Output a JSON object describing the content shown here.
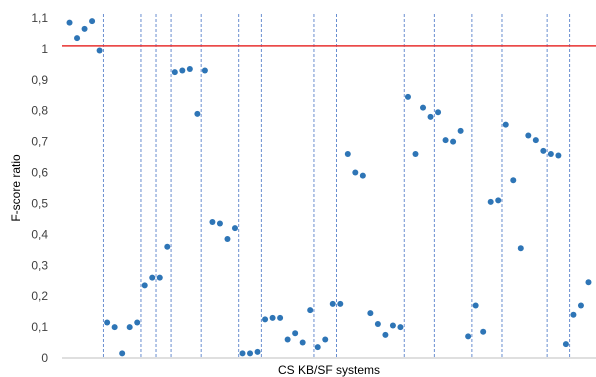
{
  "chart_data": {
    "type": "scatter",
    "title": "",
    "xlabel": "CS KB/SF systems",
    "ylabel": "F-score ratio",
    "ylim": [
      0,
      1.1
    ],
    "xlim": [
      0,
      71
    ],
    "yticks": [
      {
        "value": 0,
        "label": "0"
      },
      {
        "value": 0.1,
        "label": "0,1"
      },
      {
        "value": 0.2,
        "label": "0,2"
      },
      {
        "value": 0.3,
        "label": "0,3"
      },
      {
        "value": 0.4,
        "label": "0,4"
      },
      {
        "value": 0.5,
        "label": "0,5"
      },
      {
        "value": 0.6,
        "label": "0,6"
      },
      {
        "value": 0.7,
        "label": "0,7"
      },
      {
        "value": 0.8,
        "label": "0,8"
      },
      {
        "value": 0.9,
        "label": "0,9"
      },
      {
        "value": 1,
        "label": "1"
      },
      {
        "value": 1.1,
        "label": "1,1"
      }
    ],
    "reference_line": {
      "y": 1.01,
      "color": "#e8312f"
    },
    "group_separators_x": [
      5.5,
      10.5,
      12.5,
      14.5,
      18.5,
      23.5,
      26.5,
      33.5,
      36.5,
      45.5,
      49.5,
      54.5,
      58.5,
      64.5,
      67.5
    ],
    "grid": false,
    "legend": "none",
    "point_color": "#2e75b6",
    "series": [
      {
        "x": [
          1,
          2,
          3,
          4,
          5,
          6,
          7,
          8,
          9,
          10,
          11,
          12,
          13,
          14,
          15,
          16,
          17,
          18,
          19,
          20,
          21,
          22,
          23,
          24,
          25,
          26,
          27,
          28,
          29,
          30,
          31,
          32,
          33,
          34,
          35,
          36,
          37,
          38,
          39,
          40,
          41,
          42,
          43,
          44,
          45,
          46,
          47,
          48,
          49,
          50,
          51,
          52,
          53,
          54,
          55,
          56,
          57,
          58,
          59,
          60,
          61,
          62,
          63,
          64,
          65,
          66,
          67,
          68,
          69,
          70
        ],
        "y": [
          1.085,
          1.035,
          1.065,
          1.09,
          0.995,
          0.115,
          0.1,
          0.015,
          0.1,
          0.115,
          0.235,
          0.26,
          0.26,
          0.36,
          0.925,
          0.93,
          0.935,
          0.79,
          0.93,
          0.44,
          0.435,
          0.385,
          0.42,
          0.015,
          0.015,
          0.02,
          0.125,
          0.13,
          0.13,
          0.06,
          0.08,
          0.05,
          0.155,
          0.035,
          0.06,
          0.175,
          0.175,
          0.66,
          0.6,
          0.59,
          0.145,
          0.11,
          0.075,
          0.105,
          0.1,
          0.845,
          0.66,
          0.81,
          0.78,
          0.795,
          0.705,
          0.7,
          0.735,
          0.07,
          0.17,
          0.085,
          0.505,
          0.51,
          0.755,
          0.575,
          0.355,
          0.72,
          0.705,
          0.67,
          0.66,
          0.655,
          0.045,
          0.14,
          0.17,
          0.245
        ]
      }
    ]
  }
}
